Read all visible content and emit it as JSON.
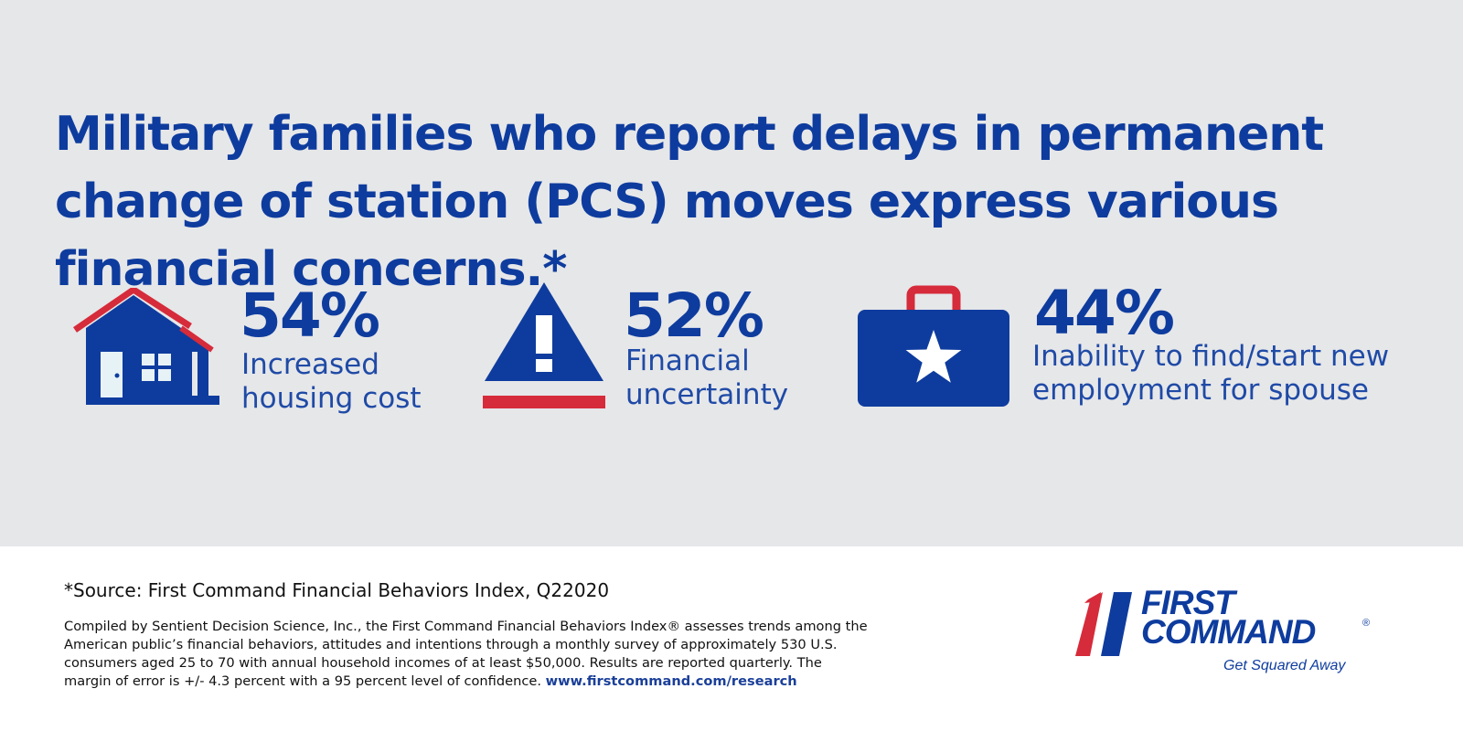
{
  "headline": "Military families who report delays in permanent change of station (PCS) moves express various financial concerns.*",
  "colors": {
    "primary_blue": "#0e3c9e",
    "accent_red": "#d62b3a",
    "panel_gray": "#e6e7e9"
  },
  "stats": [
    {
      "percent": "54%",
      "label_line1": "Increased",
      "label_line2": "housing cost",
      "icon": "house-icon"
    },
    {
      "percent": "52%",
      "label_line1": "Financial",
      "label_line2": "uncertainty",
      "icon": "warning-triangle-icon"
    },
    {
      "percent": "44%",
      "label_line1": "Inability to find/start new",
      "label_line2": "employment for spouse",
      "icon": "briefcase-star-icon"
    }
  ],
  "footer": {
    "source": "*Source: First Command Financial Behaviors Index, Q22020",
    "compiled": "Compiled by Sentient Decision Science, Inc., the First Command Financial Behaviors Index® assesses trends among the American public’s financial behaviors, attitudes and intentions through a monthly survey of approximately 530 U.S. consumers aged 25 to 70 with annual household incomes of at least $50,000. Results are reported quarterly. The margin of error is +/- 4.3 percent with a 95 percent level of confidence.",
    "url": "www.firstcommand.com/research"
  },
  "logo": {
    "word1": "FIRST",
    "word2": "COMMAND",
    "registered": "®",
    "tagline": "Get Squared Away"
  }
}
